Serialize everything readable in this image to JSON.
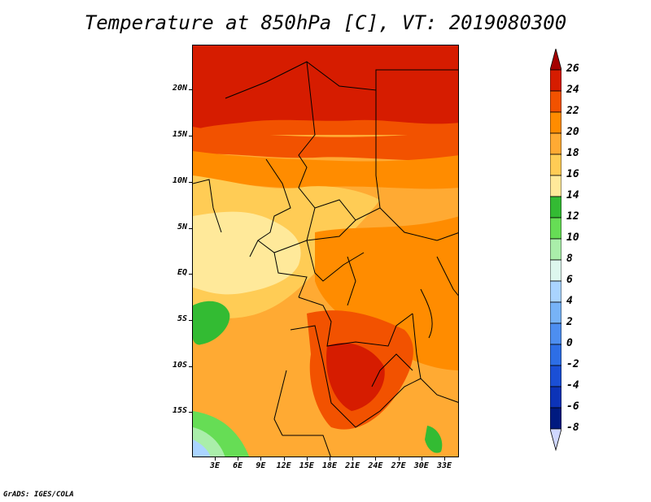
{
  "title": "Temperature at 850hPa [C], VT: 2019080300",
  "footer": "GrADS: IGES/COLA",
  "lat_labels": [
    "20N",
    "15N",
    "10N",
    "5N",
    "EQ",
    "5S",
    "10S",
    "15S"
  ],
  "lon_labels": [
    "3E",
    "6E",
    "9E",
    "12E",
    "15E",
    "18E",
    "21E",
    "24E",
    "27E",
    "30E",
    "33E"
  ],
  "colorbar": {
    "levels": [
      "26",
      "24",
      "22",
      "20",
      "18",
      "16",
      "14",
      "12",
      "10",
      "8",
      "6",
      "4",
      "2",
      "0",
      "-2",
      "-4",
      "-6",
      "-8"
    ],
    "colors": [
      "#a50000",
      "#d61c00",
      "#f25200",
      "#ff8c00",
      "#ffaa33",
      "#ffcc55",
      "#ffe99a",
      "#33bb33",
      "#66dd55",
      "#aaeeaa",
      "#ddf7ee",
      "#aad4ff",
      "#77b3f7",
      "#4d8ef0",
      "#2d6ee6",
      "#1a4fd6",
      "#0c33b8",
      "#001a80",
      "#000a55"
    ],
    "under_color": "#d0d8ff"
  }
}
